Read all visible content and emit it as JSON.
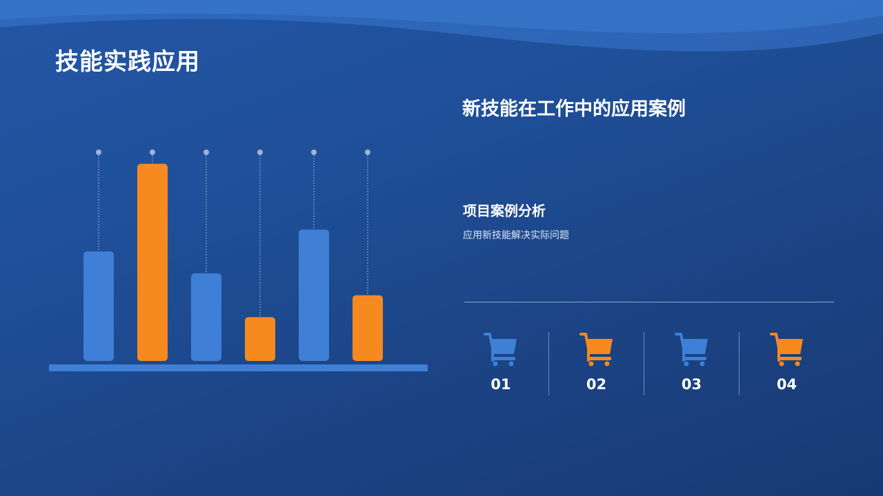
{
  "slide": {
    "title": "技能实践应用",
    "heading": "新技能在工作中的应用案例",
    "case_title": "项目案例分析",
    "case_desc": "应用新技能解决实际问题"
  },
  "colors": {
    "background_top": "#2356a6",
    "background_bottom": "#183a73",
    "blue": "#3f7fd6",
    "orange": "#f68a1f",
    "baseline": "#3f7fd6"
  },
  "chart_data": {
    "type": "bar",
    "categories": [
      "",
      "",
      "",
      "",
      "",
      ""
    ],
    "values": [
      5,
      9,
      4,
      2,
      6,
      3
    ],
    "bar_colors": [
      "blue",
      "orange",
      "blue",
      "orange",
      "blue",
      "orange"
    ],
    "ylim": [
      0,
      10
    ],
    "title": "",
    "xlabel": "",
    "ylabel": "",
    "grid": false,
    "legend": "none"
  },
  "items": [
    {
      "icon": "shopping-cart-icon",
      "color": "blue",
      "label": "01"
    },
    {
      "icon": "shopping-cart-icon",
      "color": "orange",
      "label": "02"
    },
    {
      "icon": "shopping-cart-icon",
      "color": "blue",
      "label": "03"
    },
    {
      "icon": "shopping-cart-icon",
      "color": "orange",
      "label": "04"
    }
  ]
}
